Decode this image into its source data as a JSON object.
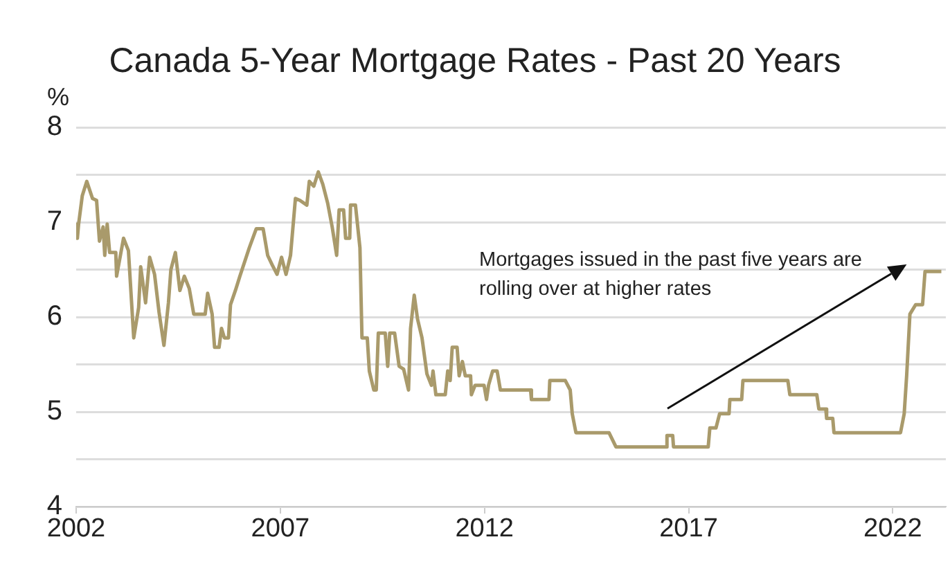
{
  "chart_data": {
    "type": "line",
    "title": "Canada 5-Year Mortgage Rates - Past 20 Years",
    "ylabel": "%",
    "annotations": [
      "Mortgages issued in the past five years are rolling over at higher rates"
    ],
    "xlim": [
      2002,
      2023.3
    ],
    "xticks": [
      2002,
      2007,
      2012,
      2017,
      2022
    ],
    "ylim": [
      4,
      8
    ],
    "yticks": [
      4,
      {
        "value": 4.5,
        "label": null
      },
      5,
      {
        "value": 5.5,
        "label": null
      },
      6,
      {
        "value": 6.5,
        "label": null
      },
      7,
      {
        "value": 7.5,
        "label": null
      },
      8
    ],
    "grid": "y",
    "legend": false,
    "marker": "none",
    "line_style": "solid",
    "series": [
      {
        "color": "#a99a6b",
        "x": [
          2002.0,
          2002.03,
          2002.06,
          2002.15,
          2002.26,
          2002.4,
          2002.5,
          2002.57,
          2002.66,
          2002.7,
          2002.76,
          2002.82,
          2002.97,
          2002.99,
          2003.16,
          2003.28,
          2003.41,
          2003.53,
          2003.58,
          2003.7,
          2003.8,
          2003.92,
          2004.03,
          2004.15,
          2004.26,
          2004.32,
          2004.43,
          2004.54,
          2004.65,
          2004.77,
          2004.88,
          2005.16,
          2005.22,
          2005.33,
          2005.39,
          2005.5,
          2005.56,
          2005.63,
          2005.73,
          2005.78,
          2005.9,
          2006.01,
          2006.24,
          2006.41,
          2006.58,
          2006.69,
          2006.8,
          2006.92,
          2007.03,
          2007.14,
          2007.25,
          2007.37,
          2007.48,
          2007.65,
          2007.71,
          2007.82,
          2007.93,
          2008.04,
          2008.16,
          2008.27,
          2008.38,
          2008.44,
          2008.55,
          2008.6,
          2008.7,
          2008.72,
          2008.84,
          2008.95,
          2009.0,
          2009.13,
          2009.18,
          2009.29,
          2009.35,
          2009.4,
          2009.57,
          2009.63,
          2009.68,
          2009.8,
          2009.91,
          2010.02,
          2010.14,
          2010.19,
          2010.28,
          2010.36,
          2010.47,
          2010.59,
          2010.7,
          2010.74,
          2010.81,
          2011.04,
          2011.1,
          2011.16,
          2011.21,
          2011.33,
          2011.38,
          2011.46,
          2011.53,
          2011.66,
          2011.68,
          2011.77,
          2011.99,
          2012.05,
          2012.1,
          2012.2,
          2012.31,
          2012.39,
          2013.13,
          2013.15,
          2013.58,
          2013.6,
          2013.98,
          2014.1,
          2014.15,
          2014.24,
          2015.05,
          2015.22,
          2016.46,
          2016.47,
          2016.61,
          2016.63,
          2017.48,
          2017.52,
          2017.67,
          2017.76,
          2017.99,
          2018.01,
          2018.3,
          2018.33,
          2019.43,
          2019.48,
          2020.14,
          2020.19,
          2020.36,
          2020.38,
          2020.53,
          2020.56,
          2022.19,
          2022.28,
          2022.34,
          2022.42,
          2022.56,
          2022.73,
          2022.79,
          2023.19
        ],
        "values": [
          6.98,
          6.83,
          6.98,
          7.28,
          7.43,
          7.25,
          7.23,
          6.8,
          6.95,
          6.65,
          6.98,
          6.68,
          6.68,
          6.43,
          6.83,
          6.7,
          5.78,
          6.1,
          6.53,
          6.15,
          6.63,
          6.45,
          6.05,
          5.7,
          6.15,
          6.5,
          6.68,
          6.28,
          6.43,
          6.3,
          6.03,
          6.03,
          6.25,
          6.03,
          5.68,
          5.68,
          5.88,
          5.78,
          5.78,
          6.13,
          6.28,
          6.43,
          6.73,
          6.93,
          6.93,
          6.65,
          6.55,
          6.45,
          6.63,
          6.45,
          6.65,
          7.25,
          7.23,
          7.18,
          7.43,
          7.38,
          7.53,
          7.4,
          7.2,
          6.95,
          6.65,
          7.13,
          7.13,
          6.83,
          6.83,
          7.18,
          7.18,
          6.73,
          5.78,
          5.78,
          5.43,
          5.23,
          5.23,
          5.83,
          5.83,
          5.48,
          5.83,
          5.83,
          5.48,
          5.45,
          5.23,
          5.88,
          6.23,
          5.98,
          5.78,
          5.4,
          5.28,
          5.43,
          5.18,
          5.18,
          5.43,
          5.33,
          5.68,
          5.68,
          5.38,
          5.53,
          5.38,
          5.38,
          5.18,
          5.28,
          5.28,
          5.13,
          5.28,
          5.43,
          5.43,
          5.23,
          5.23,
          5.13,
          5.13,
          5.33,
          5.33,
          5.23,
          4.98,
          4.78,
          4.78,
          4.63,
          4.63,
          4.75,
          4.75,
          4.63,
          4.63,
          4.83,
          4.83,
          4.98,
          4.98,
          5.13,
          5.13,
          5.33,
          5.33,
          5.18,
          5.18,
          5.03,
          5.03,
          4.93,
          4.93,
          4.78,
          4.78,
          4.98,
          5.38,
          6.03,
          6.13,
          6.13,
          6.48,
          6.48
        ]
      }
    ]
  }
}
